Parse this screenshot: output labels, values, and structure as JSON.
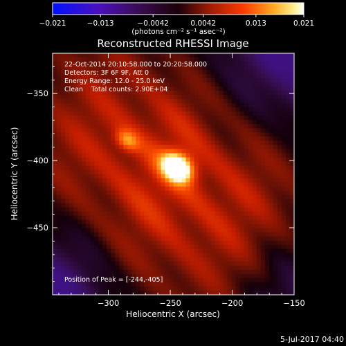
{
  "window": {
    "timestamp": "5-Jul-2017 04:40"
  },
  "colorbar": {
    "ticks": [
      "-0.021",
      "-0.013",
      "-0.0042",
      "0.0042",
      "0.013",
      "0.021"
    ],
    "values": [
      -0.021,
      -0.013,
      -0.0042,
      0.0042,
      0.013,
      0.021
    ],
    "range": [
      -0.021,
      0.021
    ],
    "units_label": "(photons cm⁻² s⁻¹ asec⁻²)",
    "colors": [
      "#0000ff",
      "#3a0c73",
      "#000000",
      "#8a1a0a",
      "#e52a00",
      "#ff8a10",
      "#ffee80",
      "#ffffff"
    ]
  },
  "chart_data": {
    "type": "heatmap",
    "title": "Reconstructed RHESSI Image",
    "xlabel": "Heliocentric X (arcsec)",
    "ylabel": "Heliocentric Y (arcsec)",
    "xlim": [
      -345,
      -150
    ],
    "ylim": [
      -500,
      -320
    ],
    "xticks": [
      -300,
      -250,
      -200,
      -150
    ],
    "yticks": [
      -350,
      -400,
      -450
    ],
    "xtick_labels": [
      "−300",
      "−250",
      "−200",
      "−150"
    ],
    "ytick_labels": [
      "−350",
      "−400",
      "−450"
    ],
    "annotations": [
      "22-Oct-2014 20:10:58.000 to 20:20:58.000",
      "Detectors: 3F 6F 9F, Att 0",
      "Energy Range: 12.0 - 25.0 keV",
      "Clean    Total counts: 2.90E+04"
    ],
    "peak_label": "Position of Peak = [-244,-405]",
    "peak": {
      "x": -244,
      "y": -405
    },
    "secondary_source": {
      "x": -285,
      "y": -385
    },
    "colormap": "rainbow (blue-purple-black-red-yellow-white)"
  }
}
